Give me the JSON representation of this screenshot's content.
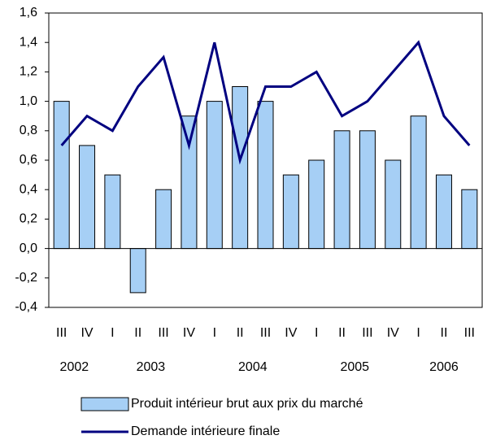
{
  "chart_data": {
    "type": "bar_line",
    "categories": [
      "III",
      "IV",
      "I",
      "II",
      "III",
      "IV",
      "I",
      "II",
      "III",
      "IV",
      "I",
      "II",
      "III",
      "IV",
      "I",
      "II",
      "III"
    ],
    "year_groups": [
      {
        "label": "2002",
        "span": 2
      },
      {
        "label": "2003",
        "span": 4
      },
      {
        "label": "2004",
        "span": 4
      },
      {
        "label": "2005",
        "span": 4
      },
      {
        "label": "2006",
        "span": 3
      }
    ],
    "series": [
      {
        "name": "Produit intérieur brut aux prix du marché",
        "type": "bar",
        "color": "#a6cff5",
        "values": [
          1.0,
          0.7,
          0.5,
          -0.3,
          0.4,
          0.9,
          1.0,
          1.1,
          1.0,
          0.5,
          0.6,
          0.8,
          0.8,
          0.6,
          0.9,
          0.5,
          0.4
        ]
      },
      {
        "name": "Demande intérieure finale",
        "type": "line",
        "color": "#000080",
        "values": [
          0.7,
          0.9,
          0.8,
          1.1,
          1.3,
          0.7,
          1.4,
          0.6,
          1.1,
          1.1,
          1.2,
          0.9,
          1.0,
          1.2,
          1.4,
          0.9,
          0.7
        ]
      }
    ],
    "ylim": [
      -0.4,
      1.6
    ],
    "yticks": [
      {
        "value": -0.4,
        "label": "-0,4"
      },
      {
        "value": -0.2,
        "label": "-0,2"
      },
      {
        "value": 0,
        "label": "0,0"
      },
      {
        "value": 0.2,
        "label": "0,2"
      },
      {
        "value": 0.4,
        "label": "0,4"
      },
      {
        "value": 0.6,
        "label": "0,6"
      },
      {
        "value": 0.8,
        "label": "0,8"
      },
      {
        "value": 1.0,
        "label": "1,0"
      },
      {
        "value": 1.2,
        "label": "1,2"
      },
      {
        "value": 1.4,
        "label": "1,4"
      },
      {
        "value": 1.6,
        "label": "1,6"
      }
    ],
    "legend": "bottom"
  }
}
